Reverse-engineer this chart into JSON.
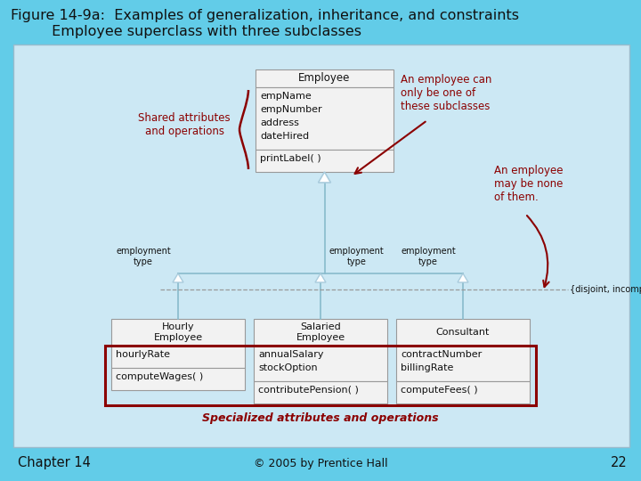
{
  "title_line1": "Figure 14-9a:  Examples of generalization, inheritance, and constraints",
  "title_line2": "         Employee superclass with three subclasses",
  "bg_outer": "#62cce8",
  "bg_inner": "#cce8f4",
  "box_fill": "#f2f2f2",
  "box_edge": "#999999",
  "dark_red": "#8b0000",
  "line_color": "#88bbcc",
  "tri_color": "#aaccdd",
  "dashed_color": "#999999",
  "text_color": "#111111",
  "footer_text": "© 2005 by Prentice Hall",
  "chapter_text": "Chapter 14",
  "page_num": "22",
  "emp_name": "Employee",
  "emp_attrs": [
    "empName",
    "empNumber",
    "address",
    "dateHired"
  ],
  "emp_ops": [
    "printLabel( )"
  ],
  "sub_names": [
    "Hourly\nEmployee",
    "Salaried\nEmployee",
    "Consultant"
  ],
  "sub_attrs": [
    [
      "hourlyRate"
    ],
    [
      "annualSalary",
      "stockOption"
    ],
    [
      "contractNumber",
      "billingRate"
    ]
  ],
  "sub_ops": [
    [
      "computeWages( )"
    ],
    [
      "contributePension( )"
    ],
    [
      "computeFees( )"
    ]
  ],
  "role_label": "employment\ntype",
  "annotation1": "An employee can\nonly be one of\nthese subclasses",
  "annotation2": "An employee\nmay be none\nof them.",
  "shared_label": "Shared attributes\nand operations",
  "specialized_label": "Specialized attributes and operations",
  "constraint_label": "{disjoint, incomplete}"
}
